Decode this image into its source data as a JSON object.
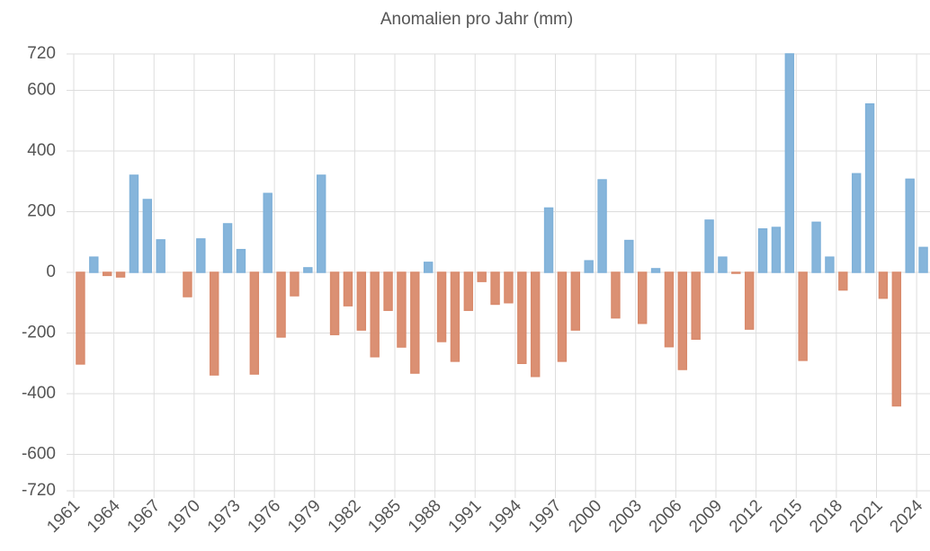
{
  "chart_data": {
    "type": "bar",
    "title": "Anomalien pro Jahr (mm)",
    "categories": [
      "1961",
      null,
      null,
      "1964",
      null,
      null,
      "1967",
      null,
      null,
      "1970",
      null,
      null,
      "1973",
      null,
      null,
      "1976",
      null,
      null,
      "1979",
      null,
      null,
      "1982",
      null,
      null,
      "1985",
      null,
      null,
      "1988",
      null,
      null,
      "1991",
      null,
      null,
      "1994",
      null,
      null,
      "1997",
      null,
      null,
      "2000",
      null,
      null,
      "2003",
      null,
      null,
      "2006",
      null,
      null,
      "2009",
      null,
      null,
      "2012",
      null,
      null,
      "2015",
      null,
      null,
      "2018",
      null,
      null,
      "2021",
      null,
      null,
      "2024"
    ],
    "values": [
      -302,
      50,
      -10,
      -15,
      320,
      240,
      107,
      0,
      -80,
      110,
      -338,
      160,
      75,
      -335,
      260,
      -213,
      -77,
      15,
      320,
      -205,
      -110,
      -190,
      -278,
      -125,
      -246,
      -332,
      33,
      -228,
      -293,
      -125,
      -30,
      -105,
      -100,
      -300,
      -343,
      212,
      -293,
      -190,
      38,
      305,
      -150,
      105,
      -168,
      12,
      -245,
      -320,
      -220,
      172,
      50,
      -3,
      -187,
      143,
      148,
      720,
      -290,
      165,
      50,
      -58,
      325,
      555,
      -85,
      -440,
      307,
      82
    ],
    "positive_color": "#7fb1d9",
    "negative_color": "#d98a6c",
    "ylim": [
      -720,
      720
    ],
    "yticks": [
      -720,
      -600,
      -400,
      -200,
      0,
      200,
      400,
      600,
      720
    ],
    "grid": true
  }
}
